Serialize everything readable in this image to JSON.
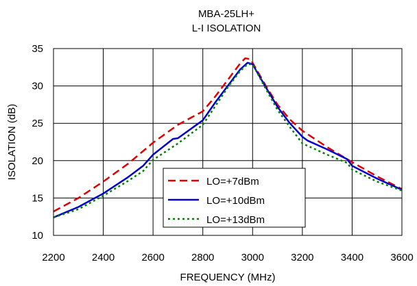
{
  "chart_data": {
    "type": "line",
    "title": "MBA-25LH+",
    "subtitle": "L-I ISOLATION",
    "xlabel": "FREQUENCY (MHz)",
    "ylabel": "ISOLATION (dB)",
    "xlim": [
      2200,
      3600
    ],
    "ylim": [
      10,
      35
    ],
    "xticks": [
      2200,
      2400,
      2600,
      2800,
      3000,
      3200,
      3400,
      3600
    ],
    "yticks": [
      10,
      15,
      20,
      25,
      30,
      35
    ],
    "xtick_labels": [
      "2200",
      "2400",
      "2600",
      "2800",
      "3000",
      "3200",
      "3400",
      "3600"
    ],
    "ytick_labels": [
      "10",
      "15",
      "20",
      "25",
      "30",
      "35"
    ],
    "grid": true,
    "legend_position": "bottom-center",
    "series": [
      {
        "name": "LO=+7dBm",
        "color": "#e00000",
        "style": "dashed",
        "x": [
          2200,
          2300,
          2400,
          2500,
          2600,
          2700,
          2800,
          2850,
          2900,
          2950,
          2970,
          2990,
          3000,
          3050,
          3100,
          3150,
          3200,
          3300,
          3400,
          3500,
          3600
        ],
        "y": [
          13.2,
          15.0,
          17.2,
          19.6,
          22.4,
          24.8,
          26.6,
          28.6,
          30.8,
          33.0,
          33.7,
          33.6,
          33.1,
          30.2,
          27.5,
          25.5,
          24.0,
          21.8,
          19.8,
          17.9,
          16.2
        ]
      },
      {
        "name": "LO=+10dBm",
        "color": "#0000cc",
        "style": "solid",
        "x": [
          2200,
          2300,
          2400,
          2500,
          2560,
          2600,
          2680,
          2700,
          2800,
          2850,
          2900,
          2950,
          2980,
          3000,
          3050,
          3100,
          3150,
          3200,
          3220,
          3300,
          3380,
          3400,
          3500,
          3600
        ],
        "y": [
          12.4,
          13.8,
          15.6,
          17.8,
          19.3,
          20.8,
          22.9,
          23.0,
          25.4,
          27.8,
          30.0,
          32.2,
          33.1,
          32.9,
          30.0,
          27.2,
          25.0,
          23.2,
          22.7,
          21.5,
          20.2,
          19.3,
          17.6,
          16.1
        ]
      },
      {
        "name": "LO=+13dBm",
        "color": "#008000",
        "style": "dotted",
        "x": [
          2200,
          2300,
          2400,
          2500,
          2560,
          2600,
          2700,
          2800,
          2850,
          2900,
          2950,
          2980,
          3000,
          3050,
          3100,
          3150,
          3200,
          3300,
          3380,
          3400,
          3500,
          3600
        ],
        "y": [
          12.4,
          13.5,
          15.3,
          17.3,
          18.6,
          20.1,
          22.3,
          24.8,
          27.3,
          29.8,
          32.0,
          32.9,
          32.9,
          29.8,
          26.8,
          24.5,
          22.3,
          20.8,
          19.7,
          18.8,
          17.2,
          16.0
        ]
      }
    ]
  }
}
